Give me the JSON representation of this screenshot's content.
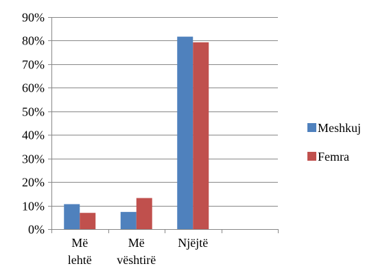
{
  "chart_data": {
    "type": "bar",
    "categories": [
      [
        "Më",
        "lehtë"
      ],
      [
        "Më",
        "vështirë"
      ],
      [
        "Njëjtë"
      ],
      []
    ],
    "series": [
      {
        "name": "Meshkuj",
        "color": "#4F81BD",
        "values": [
          10.6,
          7.3,
          81.7,
          null
        ]
      },
      {
        "name": "Femra",
        "color": "#C0504D",
        "values": [
          6.9,
          13.2,
          79.3,
          null
        ]
      }
    ],
    "ylim": [
      0,
      90
    ],
    "y_ticks": [
      "0%",
      "10%",
      "20%",
      "30%",
      "40%",
      "50%",
      "60%",
      "70%",
      "80%",
      "90%"
    ],
    "grid": true,
    "legend_position": "right",
    "title": "",
    "xlabel": "",
    "ylabel": ""
  }
}
